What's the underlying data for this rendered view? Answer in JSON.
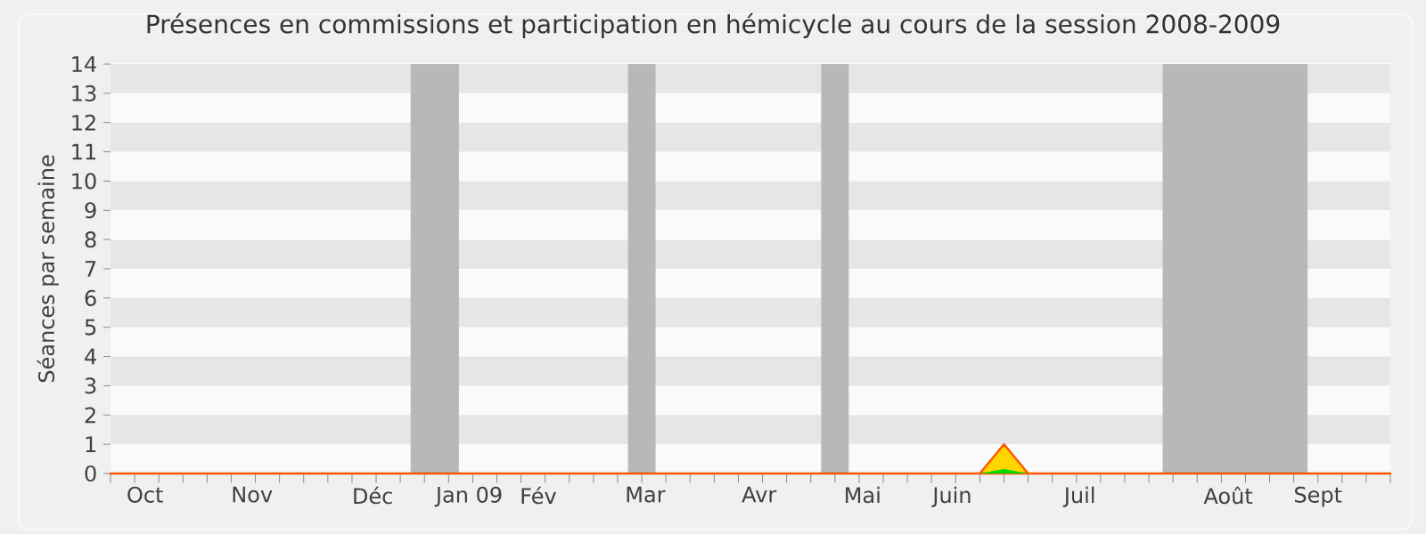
{
  "chart_data": {
    "type": "area",
    "title": "Présences en commissions et participation en hémicycle au cours de la session 2008-2009",
    "ylabel": "Séances par semaine",
    "x": [
      "2008-10-06",
      "2008-10-13",
      "2008-10-20",
      "2008-10-27",
      "2008-11-03",
      "2008-11-10",
      "2008-11-17",
      "2008-11-24",
      "2008-12-01",
      "2008-12-08",
      "2008-12-15",
      "2008-12-22",
      "2008-12-29",
      "2009-01-05",
      "2009-01-12",
      "2009-01-19",
      "2009-01-26",
      "2009-02-02",
      "2009-02-09",
      "2009-02-16",
      "2009-02-23",
      "2009-03-02",
      "2009-03-09",
      "2009-03-16",
      "2009-03-23",
      "2009-03-30",
      "2009-04-06",
      "2009-04-13",
      "2009-04-20",
      "2009-04-27",
      "2009-05-04",
      "2009-05-11",
      "2009-05-18",
      "2009-05-25",
      "2009-06-01",
      "2009-06-08",
      "2009-06-15",
      "2009-06-22",
      "2009-06-29",
      "2009-07-06",
      "2009-07-13",
      "2009-07-20",
      "2009-07-27",
      "2009-08-03",
      "2009-08-10",
      "2009-08-17",
      "2009-08-24",
      "2009-08-31",
      "2009-09-07",
      "2009-09-14",
      "2009-09-21",
      "2009-09-28",
      "2009-10-05",
      "2009-10-12"
    ],
    "series": [
      {
        "color": "#ffd700",
        "values": [
          0,
          0,
          0,
          0,
          0,
          0,
          0,
          0,
          0,
          0,
          0,
          0,
          0,
          0,
          0,
          0,
          0,
          0,
          0,
          0,
          0,
          0,
          0,
          0,
          0,
          0,
          0,
          0,
          0,
          0,
          0,
          0,
          0,
          0,
          0,
          0,
          0,
          1,
          0,
          0,
          0,
          0,
          0,
          0,
          0,
          0,
          0,
          0,
          0,
          0,
          0,
          0,
          0,
          0
        ]
      },
      {
        "color": "#00dd00",
        "values": [
          0,
          0,
          0,
          0,
          0,
          0,
          0,
          0,
          0,
          0,
          0,
          0,
          0,
          0,
          0,
          0,
          0,
          0,
          0,
          0,
          0,
          0,
          0,
          0,
          0,
          0,
          0,
          0,
          0,
          0,
          0,
          0,
          0,
          0,
          0,
          0,
          0,
          0.15,
          0,
          0,
          0,
          0,
          0,
          0,
          0,
          0,
          0,
          0,
          0,
          0,
          0,
          0,
          0,
          0
        ]
      }
    ],
    "xlim": [
      "2008-10-06",
      "2009-10-12"
    ],
    "xticks": [
      {
        "value": "2008-10-16",
        "label": "Oct"
      },
      {
        "value": "2008-11-16",
        "label": "Nov"
      },
      {
        "value": "2008-12-21",
        "label": "Déc"
      },
      {
        "value": "2009-01-18",
        "label": "Jan 09"
      },
      {
        "value": "2009-02-07",
        "label": "Fév"
      },
      {
        "value": "2009-03-10",
        "label": "Mar"
      },
      {
        "value": "2009-04-12",
        "label": "Avr"
      },
      {
        "value": "2009-05-12",
        "label": "Mai"
      },
      {
        "value": "2009-06-07",
        "label": "Juin"
      },
      {
        "value": "2009-07-14",
        "label": "Juil"
      },
      {
        "value": "2009-08-26",
        "label": "Août"
      },
      {
        "value": "2009-09-21",
        "label": "Sept"
      }
    ],
    "ylim": [
      0,
      14
    ],
    "yticks": [
      0,
      1,
      2,
      3,
      4,
      5,
      6,
      7,
      8,
      9,
      10,
      11,
      12,
      13,
      14
    ],
    "grid": "y",
    "bands": [
      {
        "axis": "x",
        "from": "2009-01-01",
        "to": "2009-01-15",
        "color": "#b8b8b8"
      },
      {
        "axis": "x",
        "from": "2009-03-05",
        "to": "2009-03-13",
        "color": "#b8b8b8"
      },
      {
        "axis": "x",
        "from": "2009-04-30",
        "to": "2009-05-08",
        "color": "#b8b8b8"
      },
      {
        "axis": "x",
        "from": "2009-08-07",
        "to": "2009-09-18",
        "color": "#b8b8b8"
      }
    ]
  }
}
